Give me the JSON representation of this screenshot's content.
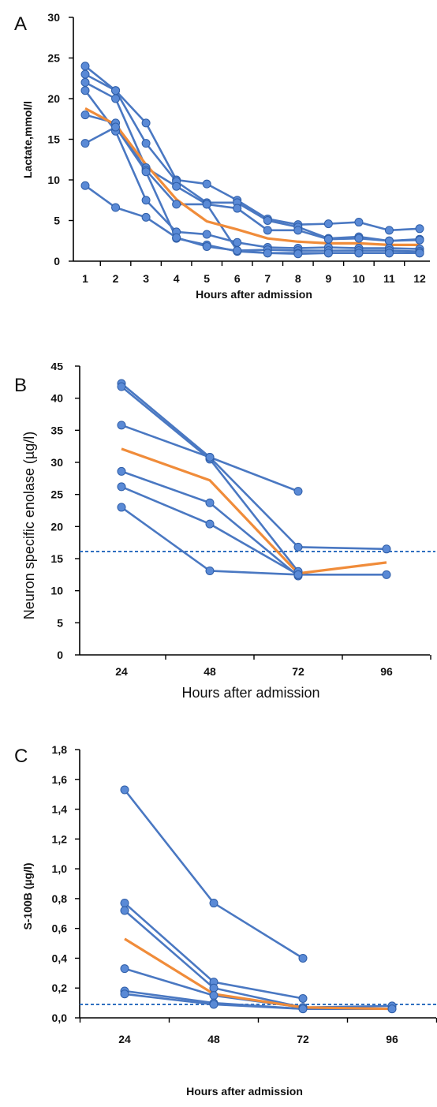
{
  "chart_data": [
    {
      "panel": "A",
      "type": "line",
      "ylabel": "Lactate,mmol/l",
      "xlabel": "Hours after admission",
      "categories": [
        "1",
        "2",
        "3",
        "4",
        "5",
        "6",
        "7",
        "8",
        "9",
        "10",
        "11",
        "12"
      ],
      "ylim": [
        0,
        30
      ],
      "yticks": [
        "0",
        "5",
        "10",
        "15",
        "20",
        "25",
        "30"
      ],
      "grid": false,
      "series": [
        {
          "values": [
            24,
            21,
            17,
            10,
            9.5,
            7.5,
            5.2,
            4.5,
            4.6,
            4.8,
            3.8,
            4.0
          ]
        },
        {
          "values": [
            23,
            21,
            14.5,
            9.8,
            7.2,
            7.2,
            5.0,
            4.2,
            2.8,
            3.0,
            2.5,
            2.7
          ]
        },
        {
          "values": [
            22,
            20,
            11.5,
            9.2,
            7.0,
            6.5,
            3.8,
            3.8,
            2.7,
            2.8,
            2.5,
            2.6
          ]
        },
        {
          "values": [
            21,
            16,
            7.5,
            3.6,
            3.3,
            2.3,
            1.7,
            1.6,
            1.7,
            1.6,
            1.6,
            1.5
          ]
        },
        {
          "values": [
            18,
            17,
            11.2,
            7.0,
            7.0,
            1.3,
            1.4,
            1.3,
            1.3,
            1.3,
            1.3,
            1.2
          ]
        },
        {
          "values": [
            14.5,
            16.5,
            11.0,
            2.8,
            2.0,
            1.2,
            1.0,
            1.0,
            1.0,
            1.0,
            1.0,
            1.0
          ]
        },
        {
          "values": [
            9.3,
            6.6,
            5.4,
            2.9,
            1.8,
            1.3,
            1.0,
            0.9,
            1.0,
            1.0,
            1.0,
            1.0
          ]
        }
      ],
      "mean": [
        18.8,
        16.8,
        11.9,
        7.6,
        4.9,
        3.9,
        2.8,
        2.4,
        2.2,
        2.2,
        2.0,
        2.0
      ],
      "reference": null
    },
    {
      "panel": "B",
      "type": "line",
      "ylabel": "Neuron specific enolase (µg/l)",
      "xlabel": "Hours after admission",
      "categories": [
        "24",
        "48",
        "72",
        "96"
      ],
      "ylim": [
        0,
        45
      ],
      "yticks": [
        "0",
        "5",
        "10",
        "15",
        "20",
        "25",
        "30",
        "35",
        "40",
        "45"
      ],
      "grid": false,
      "series": [
        {
          "values": [
            42.3,
            30.8,
            25.5,
            null
          ]
        },
        {
          "values": [
            41.8,
            30.5,
            13.0,
            null
          ]
        },
        {
          "values": [
            35.8,
            30.8,
            16.8,
            16.5
          ]
        },
        {
          "values": [
            28.6,
            23.7,
            12.3,
            null
          ]
        },
        {
          "values": [
            26.2,
            20.4,
            12.5,
            null
          ]
        },
        {
          "values": [
            23.0,
            13.1,
            12.5,
            12.5
          ]
        }
      ],
      "mean": [
        32.1,
        27.2,
        12.7,
        14.4
      ],
      "reference": 16.1
    },
    {
      "panel": "C",
      "type": "line",
      "ylabel": "S-100B (µg/l)",
      "xlabel": "Hours after admission",
      "categories": [
        "24",
        "48",
        "72",
        "96"
      ],
      "ylim": [
        0,
        1.8
      ],
      "yticks": [
        "0,0",
        "0,2",
        "0,4",
        "0,6",
        "0,8",
        "1,0",
        "1,2",
        "1,4",
        "1,6",
        "1,8"
      ],
      "grid": false,
      "series": [
        {
          "values": [
            1.53,
            0.77,
            0.4,
            null
          ]
        },
        {
          "values": [
            0.77,
            0.24,
            0.13,
            null
          ]
        },
        {
          "values": [
            0.72,
            0.2,
            0.07,
            0.06
          ]
        },
        {
          "values": [
            0.33,
            0.15,
            0.07,
            0.08
          ]
        },
        {
          "values": [
            0.18,
            0.1,
            0.06,
            null
          ]
        },
        {
          "values": [
            0.16,
            0.09,
            0.06,
            0.06
          ]
        }
      ],
      "mean": [
        0.53,
        0.16,
        0.07,
        0.06
      ],
      "reference": 0.09
    }
  ]
}
